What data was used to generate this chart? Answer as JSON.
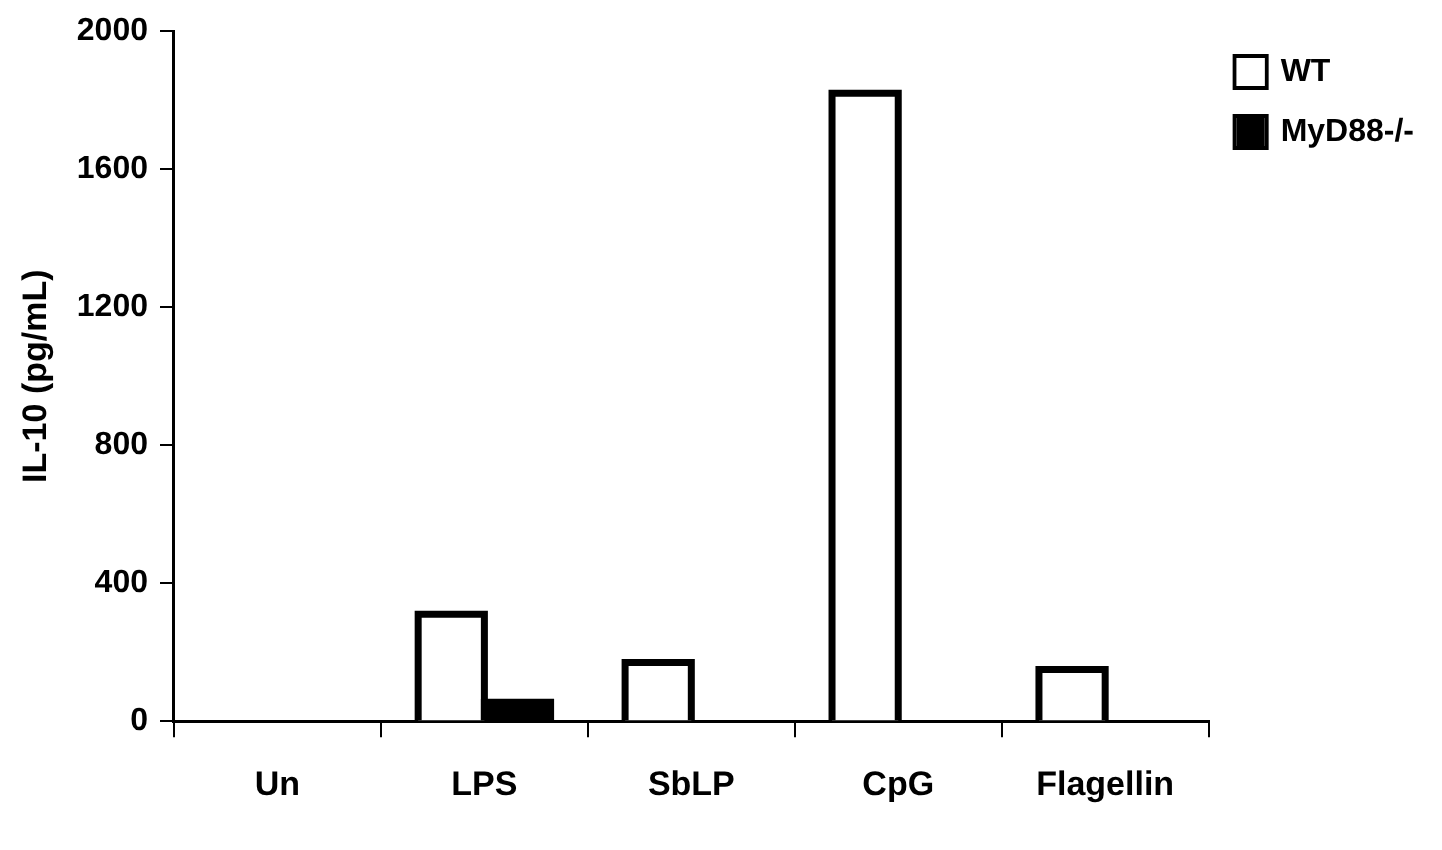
{
  "chart_data": {
    "type": "bar",
    "ylabel": "IL-10 (pg/mL)",
    "categories": [
      "Un",
      "LPS",
      "SbLP",
      "CpG",
      "Flagellin"
    ],
    "series": [
      {
        "name": "WT",
        "color": "#ffffff",
        "values": [
          0,
          310,
          170,
          1820,
          150
        ]
      },
      {
        "name": "MyD88-/-",
        "color": "#000000",
        "values": [
          0,
          55,
          0,
          0,
          0
        ]
      }
    ],
    "ylim": [
      0,
      2000
    ],
    "yticks": [
      0,
      400,
      800,
      1200,
      1600,
      2000
    ],
    "grid": false,
    "legend": "top right"
  }
}
